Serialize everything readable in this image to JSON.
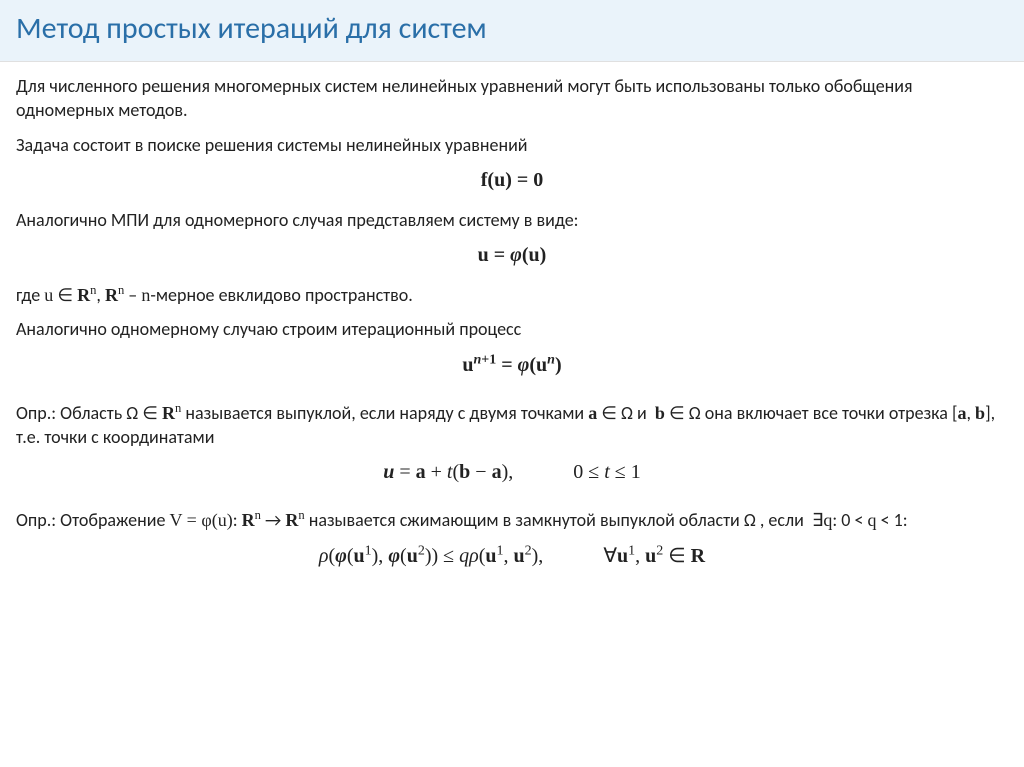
{
  "title": "Метод простых итераций для систем",
  "body": {
    "p1": "Для численного решения многомерных систем нелинейных уравнений могут быть использованы только обобщения одномерных методов.",
    "p2": "Задача состоит в поиске решения системы нелинейных уравнений",
    "eq1": "f(u) = 0",
    "p3": "Аналогично МПИ для одномерного случая представляем систему в виде:",
    "eq2": "u = φ(u)",
    "p4_html": "где <span class='math'>u</span> ∈ <span class='math bold'>R</span><sup><span class='math'>n</span></sup>, <span class='math bold'>R</span><sup><span class='math'>n</span></sup> – <span class='math'>n</span>-мерное евклидово пространство.",
    "p5": "Аналогично одномерному случаю строим итерационный процесс",
    "eq3_html": "<b>u</b><sup><i>n</i>+1</sup> = <b><i>φ</i></b>(<b>u</b><sup><i>n</i></sup>)",
    "p6_html": "Опр.: Область Ω ∈ <span class='math bold'>R</span><sup><span class='math'>n</span></sup> называется выпуклой, если наряду с двумя точками <span class='math bold'>a</span> ∈ Ω и&nbsp; <span class='math bold'>b</span> ∈ Ω она включает все точки отрезка [<span class='math bold'>a</span>, <span class='math bold'>b</span>], т.е. точки с координатами",
    "eq4_html": "<b><i>u</i></b> = <b>a</b> + <i>t</i>(<b>b</b> − <b>a</b>),<span class='spaced'></span>0 ≤ <i>t</i> ≤ 1",
    "p7_html": "Опр.: Отображение <span class='math'>V = φ(u)</span>: <span class='math bold'>R</span><sup><span class='math'>n</span></sup> → <span class='math bold'>R</span><sup><span class='math'>n</span></sup> называется сжимающим в замкнутой выпуклой области Ω , если &nbsp;∃<span class='math'>q</span>: 0 &lt; <span class='math'>q</span> &lt; 1:",
    "eq5_html": "<i>ρ</i>(<b><i>φ</i></b>(<b>u</b><sup>1</sup>), <b><i>φ</i></b>(<b>u</b><sup>2</sup>)) ≤ <i>qρ</i>(<b>u</b><sup>1</sup>, <b>u</b><sup>2</sup>),<span class='spaced'></span>∀<b>u</b><sup>1</sup>, <b>u</b><sup>2</sup> ∈ <b>R</b>"
  },
  "style": {
    "title_color": "#2a6fa8",
    "title_bg": "#eaf3fa",
    "body_fontsize": 18,
    "title_fontsize": 30,
    "formula_fontsize": 20,
    "text_color": "#222222",
    "background": "#ffffff"
  }
}
